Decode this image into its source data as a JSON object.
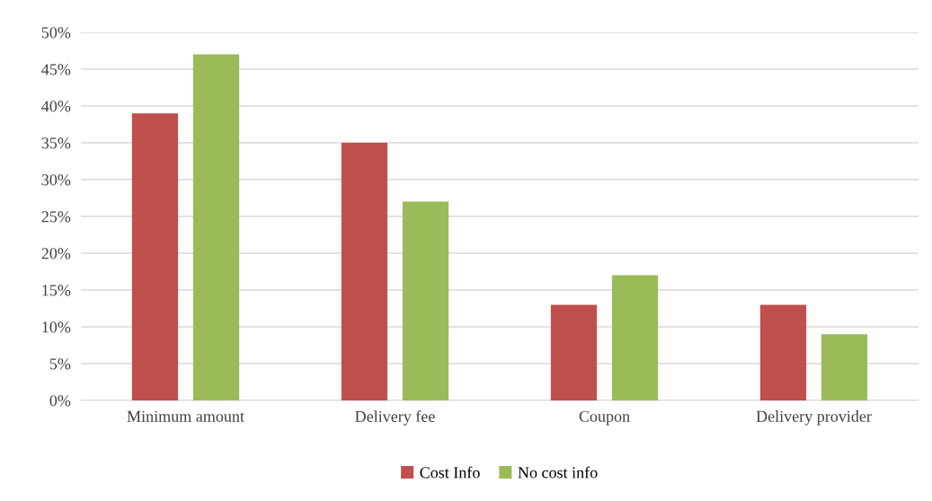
{
  "chart_data": {
    "type": "bar",
    "categories": [
      "Minimum amount",
      "Delivery fee",
      "Coupon",
      "Delivery provider"
    ],
    "series": [
      {
        "name": "Cost Info",
        "color": "#c0504d",
        "values": [
          39,
          35,
          13,
          13
        ]
      },
      {
        "name": "No cost info",
        "color": "#9bbb59",
        "values": [
          47,
          27,
          17,
          9
        ]
      }
    ],
    "ylim": [
      0,
      50
    ],
    "yticks": [
      {
        "value": 0,
        "label": "0%"
      },
      {
        "value": 5,
        "label": "5%"
      },
      {
        "value": 10,
        "label": "10%"
      },
      {
        "value": 15,
        "label": "15%"
      },
      {
        "value": 20,
        "label": "20%"
      },
      {
        "value": 25,
        "label": "25%"
      },
      {
        "value": 30,
        "label": "30%"
      },
      {
        "value": 35,
        "label": "35%"
      },
      {
        "value": 40,
        "label": "40%"
      },
      {
        "value": 45,
        "label": "45%"
      },
      {
        "value": 50,
        "label": "50%"
      }
    ],
    "grid": "y",
    "legend": "bottom"
  }
}
